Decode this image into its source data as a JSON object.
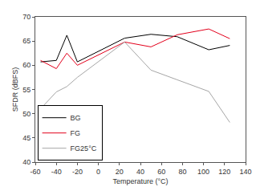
{
  "chart_data": {
    "type": "line",
    "x_label": "Temperature (°C)",
    "y_label": "SFDR (dBFS)",
    "x": [
      -55,
      -40,
      -30,
      -20,
      25,
      50,
      75,
      105,
      125
    ],
    "series": [
      {
        "name": "BG",
        "color": "#000000",
        "values": [
          60.7,
          61.0,
          66.2,
          60.7,
          65.6,
          66.4,
          65.9,
          63.2,
          64.1
        ]
      },
      {
        "name": "FG",
        "color": "#e3001b",
        "values": [
          61.0,
          59.3,
          62.5,
          60.0,
          64.8,
          63.8,
          66.3,
          67.5,
          65.5
        ]
      },
      {
        "name": "FG25°C",
        "color": "#a6a6a6",
        "values": [
          51.0,
          54.5,
          55.6,
          57.5,
          64.8,
          59.0,
          57.0,
          54.6,
          48.2
        ]
      }
    ],
    "xlim": [
      -60,
      140
    ],
    "xticks": [
      -60,
      -40,
      -20,
      0,
      20,
      40,
      60,
      80,
      100,
      120,
      140
    ],
    "ylim": [
      40,
      70
    ],
    "yticks": [
      40,
      45,
      50,
      55,
      60,
      65,
      70
    ],
    "grid": false,
    "legend": "bottom left"
  }
}
